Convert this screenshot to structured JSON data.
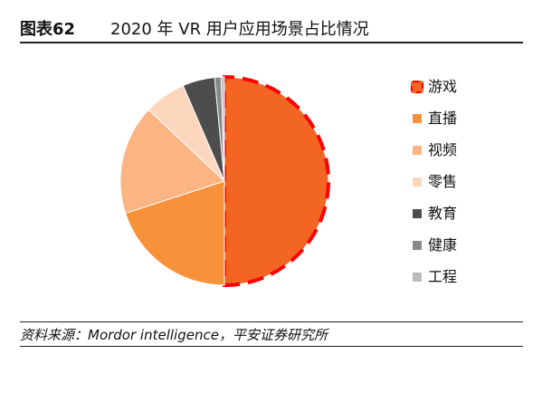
{
  "header": {
    "figure_number": "图表62",
    "title": "2020 年 VR 用户应用场景占比情况"
  },
  "chart_data": {
    "type": "pie",
    "categories": [
      "游戏",
      "直播",
      "视频",
      "零售",
      "教育",
      "健康",
      "工程"
    ],
    "values": [
      50,
      20,
      17,
      6.5,
      5,
      1,
      0.5
    ],
    "colors": [
      "#F26522",
      "#F7923A",
      "#FBB482",
      "#FDD6BE",
      "#4D4D4D",
      "#888888",
      "#BBBBBB"
    ],
    "highlighted": "游戏",
    "highlight_color": "#FF0000",
    "legend_position": "right",
    "start_angle": "12 o'clock, clockwise"
  },
  "footer": {
    "source": "资料来源：Mordor intelligence，平安证券研究所"
  }
}
